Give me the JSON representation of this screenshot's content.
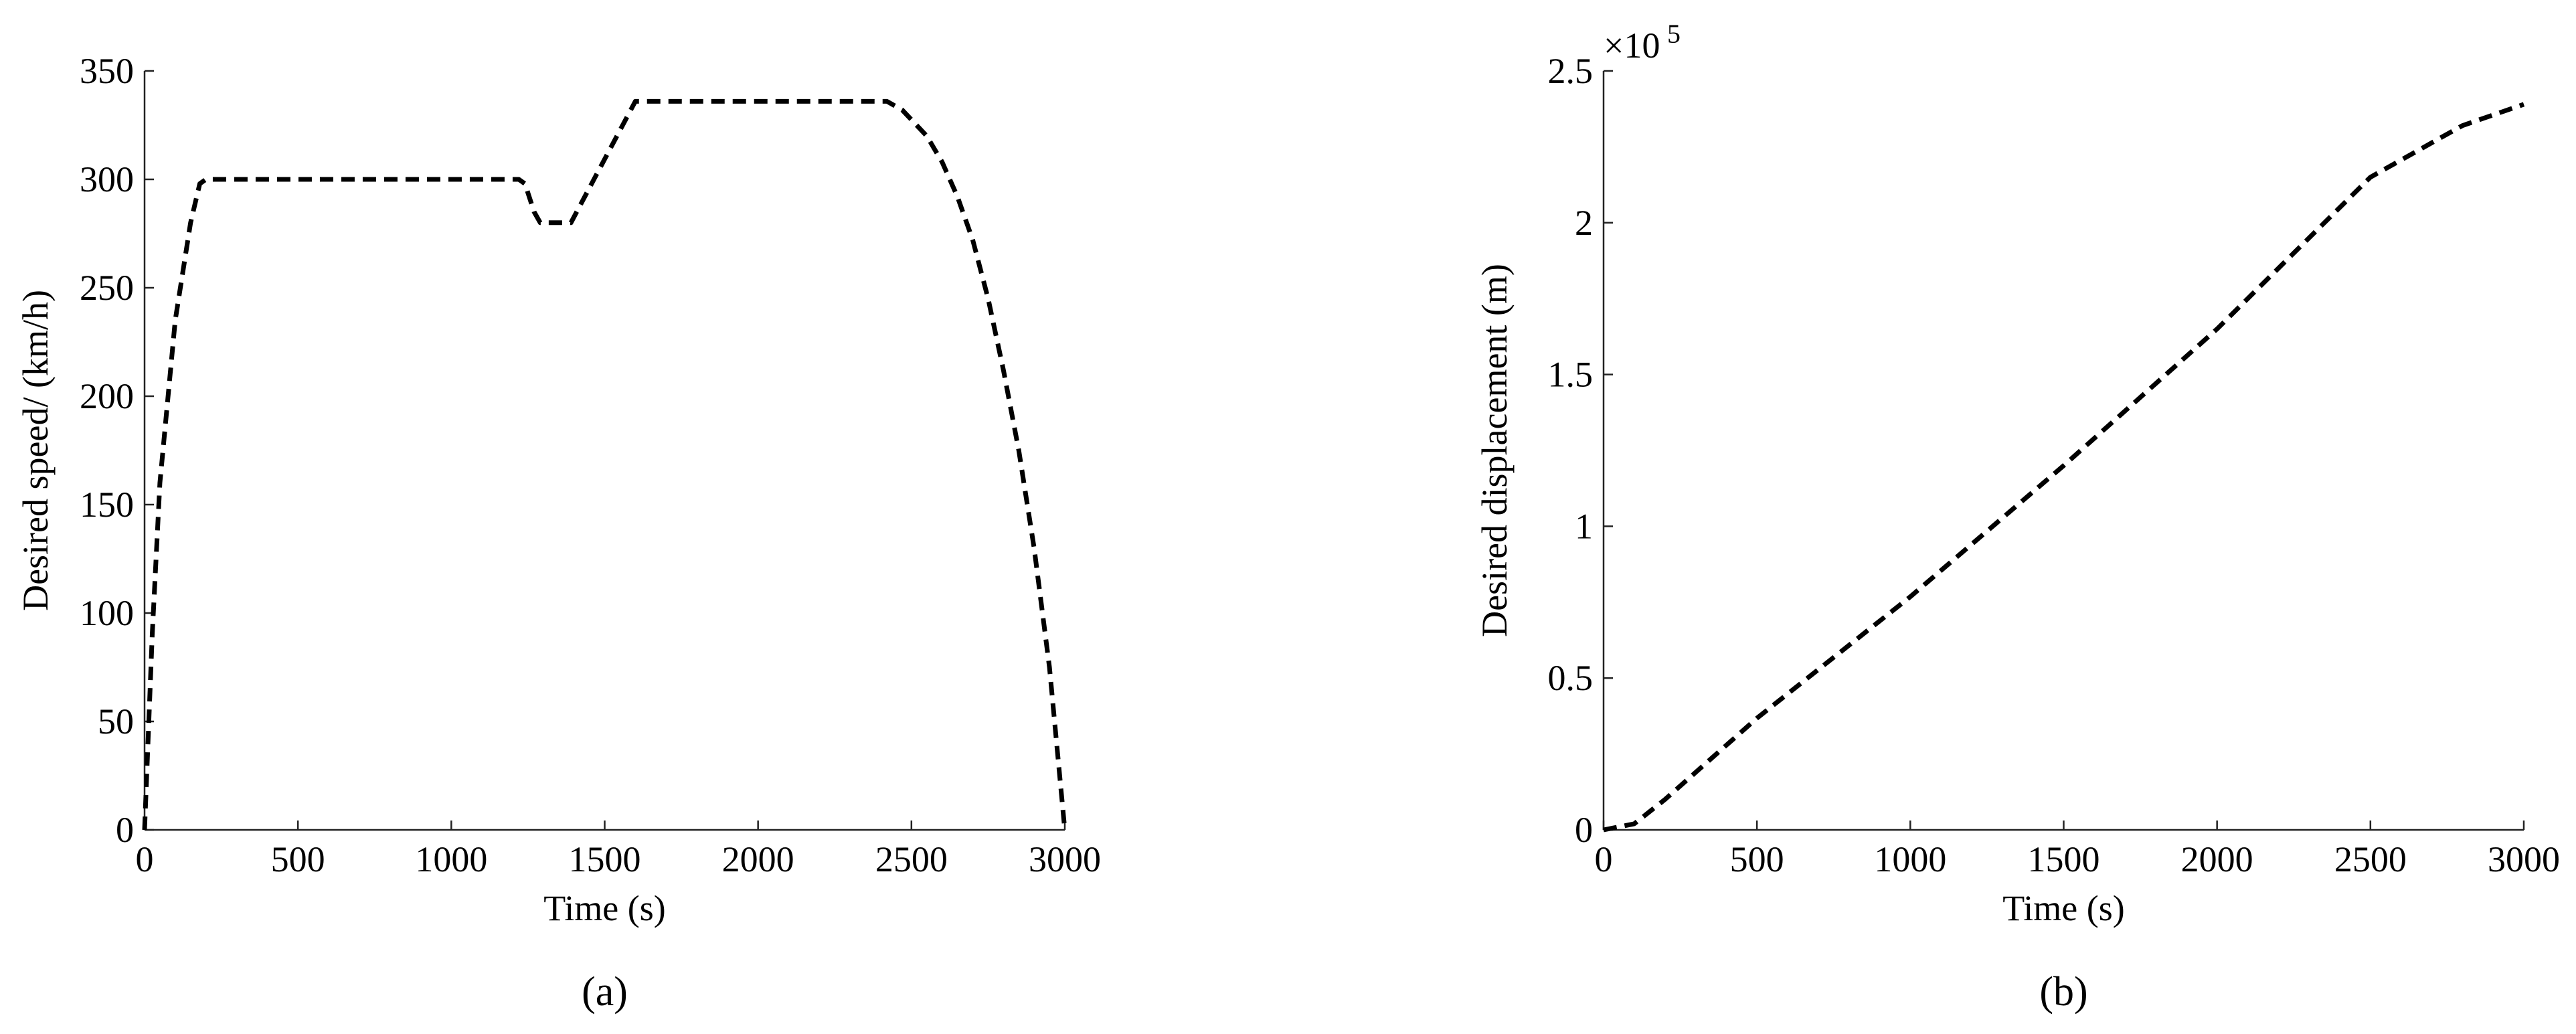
{
  "chart_data": [
    {
      "type": "line",
      "label": "(a)",
      "xlabel": "Time (s)",
      "ylabel": "Desired speed/ (km/h)",
      "xlim": [
        0,
        3000
      ],
      "xticks": [
        0,
        500,
        1000,
        1500,
        2000,
        2500,
        3000
      ],
      "ylim": [
        0,
        350
      ],
      "yticks": [
        0,
        50,
        100,
        150,
        200,
        250,
        300,
        350
      ],
      "x": [
        0,
        25,
        50,
        100,
        150,
        180,
        200,
        1220,
        1240,
        1270,
        1290,
        1390,
        1600,
        2420,
        2470,
        2550,
        2600,
        2650,
        2700,
        2750,
        2800,
        2850,
        2900,
        2950,
        3000
      ],
      "series": [
        {
          "color": "#000000",
          "values": [
            0,
            90,
            160,
            235,
            280,
            298,
            300,
            300,
            298,
            285,
            280,
            280,
            336,
            336,
            332,
            320,
            308,
            292,
            272,
            245,
            212,
            175,
            130,
            75,
            0
          ]
        }
      ]
    },
    {
      "type": "line",
      "label": "(b)",
      "xlabel": "Time (s)",
      "ylabel": "Desired displacement (m)",
      "y_offset_text": {
        "base": "×10",
        "exponent": "5"
      },
      "xlim": [
        0,
        3000
      ],
      "xticks": [
        0,
        500,
        1000,
        1500,
        2000,
        2500,
        3000
      ],
      "ylim": [
        0,
        250000
      ],
      "yticks": [
        0,
        {
          "value": 50000,
          "label": "0.5"
        },
        {
          "value": 100000,
          "label": "1"
        },
        {
          "value": 150000,
          "label": "1.5"
        },
        {
          "value": 200000,
          "label": "2"
        },
        {
          "value": 250000,
          "label": "2.5"
        }
      ],
      "x": [
        0,
        100,
        200,
        500,
        1000,
        1500,
        2000,
        2500,
        2800,
        3000
      ],
      "series": [
        {
          "color": "#000000",
          "values": [
            0,
            2000,
            10000,
            36800,
            76800,
            120000,
            165000,
            215000,
            232000,
            239000
          ]
        }
      ]
    }
  ]
}
